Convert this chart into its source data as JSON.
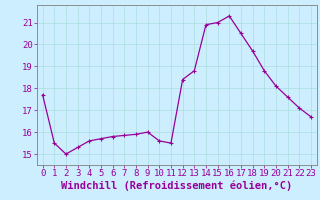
{
  "x": [
    0,
    1,
    2,
    3,
    4,
    5,
    6,
    7,
    8,
    9,
    10,
    11,
    12,
    13,
    14,
    15,
    16,
    17,
    18,
    19,
    20,
    21,
    22,
    23
  ],
  "y": [
    17.7,
    15.5,
    15.0,
    15.3,
    15.6,
    15.7,
    15.8,
    15.85,
    15.9,
    16.0,
    15.6,
    15.5,
    18.4,
    18.8,
    20.9,
    21.0,
    21.3,
    20.5,
    19.7,
    18.8,
    18.1,
    17.6,
    17.1,
    16.7
  ],
  "line_color": "#990099",
  "marker": "+",
  "marker_color": "#990099",
  "bg_color": "#cceeff",
  "grid_color": "#aadddd",
  "xlabel": "Windchill (Refroidissement éolien,°C)",
  "ylim": [
    14.5,
    21.8
  ],
  "xlim": [
    -0.5,
    23.5
  ],
  "yticks": [
    15,
    16,
    17,
    18,
    19,
    20,
    21
  ],
  "xticks": [
    0,
    1,
    2,
    3,
    4,
    5,
    6,
    7,
    8,
    9,
    10,
    11,
    12,
    13,
    14,
    15,
    16,
    17,
    18,
    19,
    20,
    21,
    22,
    23
  ],
  "xlabel_fontsize": 7.5,
  "tick_fontsize": 6.5,
  "line_width": 0.9,
  "marker_size": 3.5
}
